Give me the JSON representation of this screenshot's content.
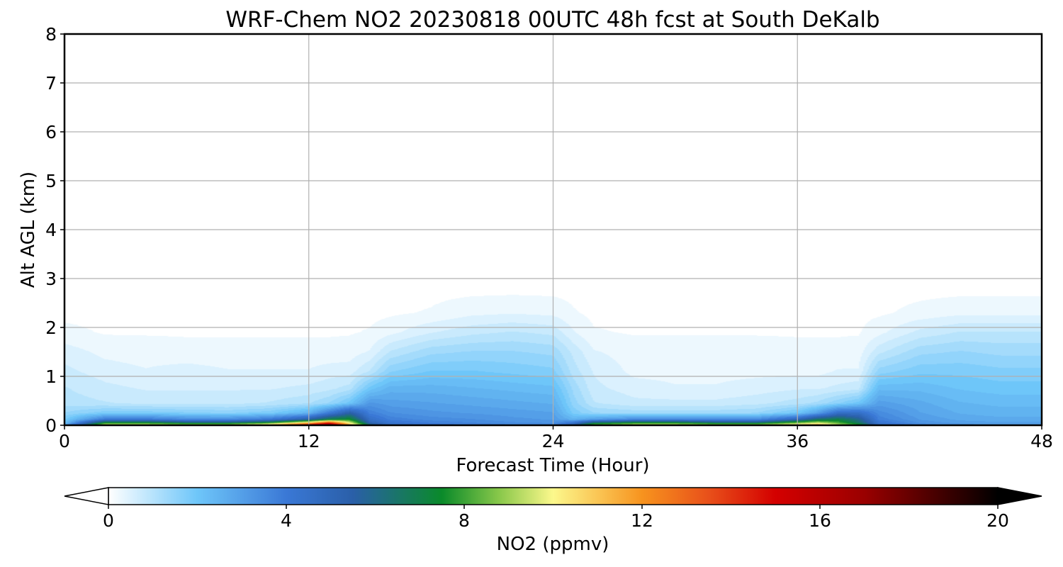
{
  "chart_data": {
    "type": "heatmap",
    "title": "WRF-Chem NO2  20230818 00UTC 48h fcst at South DeKalb",
    "xlabel": "Forecast Time (Hour)",
    "ylabel": "Alt AGL (km)",
    "xlim": [
      0,
      48
    ],
    "ylim": [
      0,
      8
    ],
    "xticks": [
      0,
      12,
      24,
      36,
      48
    ],
    "yticks": [
      0,
      1,
      2,
      3,
      4,
      5,
      6,
      7,
      8
    ],
    "grid": true,
    "colorbar": {
      "label": "NO2  (ppmv)",
      "orientation": "horizontal",
      "placement": "bottom",
      "range": [
        0,
        20
      ],
      "ticks": [
        0,
        4,
        8,
        12,
        16,
        20
      ],
      "extend": "both",
      "stops": [
        {
          "value": 0,
          "color": "#ffffff"
        },
        {
          "value": 2,
          "color": "#6ec6f9"
        },
        {
          "value": 4,
          "color": "#3a78d6"
        },
        {
          "value": 5.5,
          "color": "#2a5fa8"
        },
        {
          "value": 7.5,
          "color": "#0a8a2a"
        },
        {
          "value": 8.8,
          "color": "#8ac84a"
        },
        {
          "value": 10,
          "color": "#fcf88c"
        },
        {
          "value": 12,
          "color": "#f7931e"
        },
        {
          "value": 13.5,
          "color": "#e8501a"
        },
        {
          "value": 15,
          "color": "#d40000"
        },
        {
          "value": 17,
          "color": "#9a0000"
        },
        {
          "value": 20,
          "color": "#000000"
        }
      ]
    },
    "field": {
      "times": [
        0,
        2,
        4,
        6,
        8,
        10,
        12,
        13,
        14,
        15,
        16,
        18,
        20,
        22,
        24,
        25,
        26,
        28,
        30,
        32,
        34,
        36,
        37,
        38,
        39,
        40,
        42,
        44,
        46,
        48
      ],
      "altitudes": [
        0.02,
        0.06,
        0.12,
        0.25,
        0.45,
        0.75,
        1.1,
        1.5,
        1.9,
        2.3
      ],
      "values": [
        [
          2.5,
          9,
          9,
          8.5,
          8.5,
          10,
          14,
          17,
          11,
          6,
          4.5,
          4,
          3.8,
          3.6,
          3.5,
          5,
          8,
          9,
          9,
          8.5,
          8.5,
          10,
          11,
          9,
          7.5,
          4.5,
          3.5,
          3.2,
          3,
          3
        ],
        [
          2.0,
          7,
          7,
          6,
          6,
          7,
          10,
          13,
          9.5,
          5,
          4.2,
          3.8,
          3.6,
          3.4,
          3.3,
          4,
          6,
          7,
          7,
          6,
          6,
          8,
          9,
          8,
          6.5,
          4.2,
          3.3,
          3,
          2.9,
          2.9
        ],
        [
          1.8,
          4,
          4,
          3.5,
          3.5,
          4,
          5.5,
          7,
          7.5,
          4.5,
          3.8,
          3.5,
          3.4,
          3.2,
          3.1,
          2.5,
          3,
          3.5,
          3.5,
          3.5,
          3.5,
          5,
          6.5,
          7,
          6,
          3.8,
          3.1,
          2.8,
          2.7,
          2.7
        ],
        [
          1.4,
          1.8,
          1.8,
          1.7,
          1.6,
          1.8,
          2.5,
          4,
          5.5,
          3.8,
          3.4,
          3.2,
          3.1,
          3,
          2.9,
          1.8,
          1.4,
          1.3,
          1.3,
          1.3,
          1.4,
          2,
          3,
          4.5,
          4.5,
          3.5,
          2.9,
          2.6,
          2.5,
          2.5
        ],
        [
          1.0,
          0.9,
          0.8,
          0.8,
          0.8,
          0.9,
          1.1,
          1.4,
          2,
          3.2,
          3,
          2.9,
          2.8,
          2.7,
          2.6,
          1.5,
          0.9,
          0.7,
          0.7,
          0.7,
          0.8,
          1,
          1.2,
          1.6,
          2,
          3,
          2.7,
          2.4,
          2.3,
          2.3
        ],
        [
          0.9,
          0.7,
          0.6,
          0.6,
          0.6,
          0.6,
          0.7,
          0.8,
          1,
          2,
          2.5,
          2.5,
          2.4,
          2.3,
          2.2,
          1.3,
          0.7,
          0.5,
          0.4,
          0.4,
          0.5,
          0.6,
          0.6,
          0.7,
          0.8,
          2.3,
          2.3,
          2.1,
          2,
          2
        ],
        [
          0.7,
          0.5,
          0.4,
          0.5,
          0.4,
          0.4,
          0.4,
          0.5,
          0.5,
          0.9,
          1.6,
          1.9,
          1.9,
          1.8,
          1.7,
          1.0,
          0.6,
          0.3,
          0.3,
          0.3,
          0.3,
          0.3,
          0.3,
          0.4,
          0.4,
          1.5,
          1.8,
          1.8,
          1.7,
          1.7
        ],
        [
          0.5,
          0.3,
          0.25,
          0.2,
          0.2,
          0.2,
          0.2,
          0.2,
          0.25,
          0.4,
          0.9,
          1.3,
          1.4,
          1.4,
          1.3,
          0.8,
          0.4,
          0.25,
          0.25,
          0.25,
          0.25,
          0.2,
          0.2,
          0.2,
          0.25,
          0.8,
          1.3,
          1.4,
          1.3,
          1.3
        ],
        [
          0.2,
          0.1,
          0.1,
          0.1,
          0.1,
          0.1,
          0.1,
          0.1,
          0.1,
          0.15,
          0.3,
          0.6,
          0.8,
          0.9,
          0.8,
          0.4,
          0.15,
          0.1,
          0.1,
          0.1,
          0.1,
          0.1,
          0.1,
          0.1,
          0.1,
          0.3,
          0.7,
          0.9,
          0.9,
          0.9
        ],
        [
          0.05,
          0.05,
          0.05,
          0.05,
          0.05,
          0.05,
          0.05,
          0.05,
          0.05,
          0.05,
          0.08,
          0.15,
          0.3,
          0.35,
          0.3,
          0.15,
          0.06,
          0.05,
          0.05,
          0.05,
          0.05,
          0.05,
          0.05,
          0.05,
          0.05,
          0.08,
          0.2,
          0.3,
          0.3,
          0.3
        ]
      ],
      "background_value": 0.04
    }
  }
}
